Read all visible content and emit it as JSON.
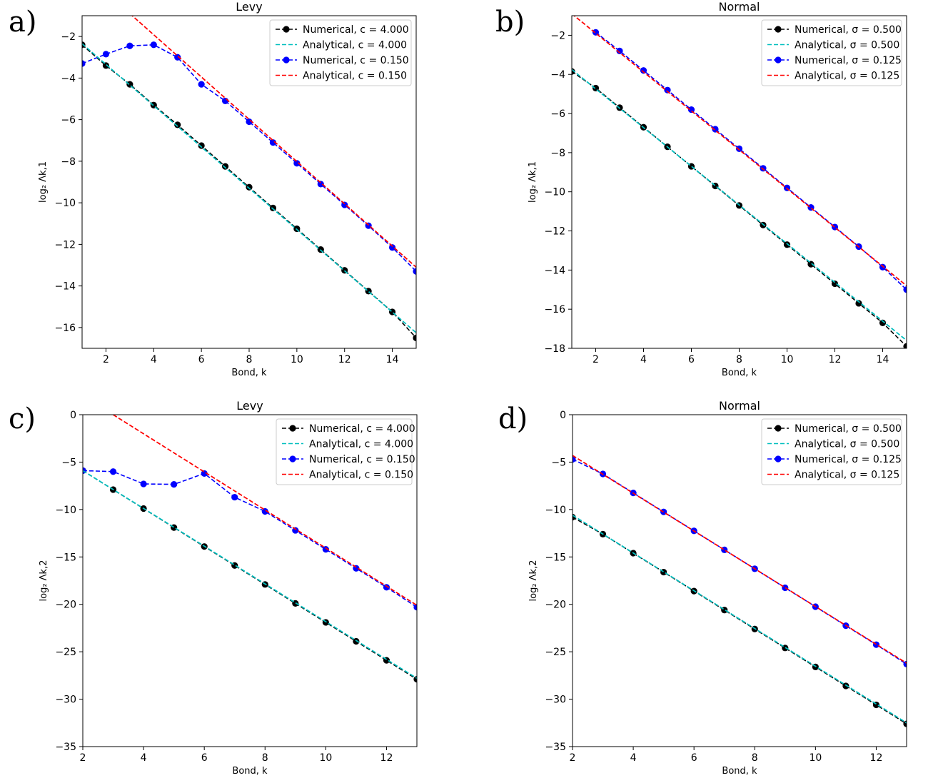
{
  "figure": {
    "panels": [
      "a)",
      "b)",
      "c)",
      "d)"
    ]
  },
  "chart_data": [
    {
      "panel": "a)",
      "type": "line",
      "title": "Levy",
      "xlabel": "Bond, k",
      "ylabel": "log₂ Λk,1",
      "xlim": [
        1,
        15
      ],
      "ylim": [
        -17,
        -1
      ],
      "xticks": [
        2,
        4,
        6,
        8,
        10,
        12,
        14
      ],
      "yticks": [
        -2,
        -4,
        -6,
        -8,
        -10,
        -12,
        -14,
        -16
      ],
      "legend_position": "top-right",
      "series": [
        {
          "name": "Numerical, c = 4.000",
          "style": "numerical",
          "color": "#000000",
          "x": [
            1,
            2,
            3,
            4,
            5,
            6,
            7,
            8,
            9,
            10,
            11,
            12,
            13,
            14,
            15
          ],
          "y": [
            -2.4,
            -3.4,
            -4.3,
            -5.3,
            -6.25,
            -7.25,
            -8.25,
            -9.25,
            -10.25,
            -11.25,
            -12.25,
            -13.25,
            -14.25,
            -15.25,
            -16.5
          ]
        },
        {
          "name": "Analytical, c = 4.000",
          "style": "analytical",
          "color": "#00bfbf",
          "x": [
            1,
            15
          ],
          "y": [
            -2.35,
            -16.25
          ]
        },
        {
          "name": "Numerical, c = 0.150",
          "style": "numerical",
          "color": "#0000ff",
          "x": [
            1,
            2,
            3,
            4,
            5,
            6,
            7,
            8,
            9,
            10,
            11,
            12,
            13,
            14,
            15
          ],
          "y": [
            -3.3,
            -2.85,
            -2.45,
            -2.4,
            -3.0,
            -4.3,
            -5.1,
            -6.1,
            -7.1,
            -8.1,
            -9.1,
            -10.1,
            -11.1,
            -12.15,
            -13.3
          ]
        },
        {
          "name": "Analytical, c = 0.150",
          "style": "analytical",
          "color": "#ff0000",
          "x": [
            3,
            15
          ],
          "y": [
            -0.9,
            -13.1
          ]
        }
      ]
    },
    {
      "panel": "b)",
      "type": "line",
      "title": "Normal",
      "xlabel": "Bond, k",
      "ylabel": "log₂ Λk,1",
      "xlim": [
        1,
        15
      ],
      "ylim": [
        -18,
        -1
      ],
      "xticks": [
        2,
        4,
        6,
        8,
        10,
        12,
        14
      ],
      "yticks": [
        -2,
        -4,
        -6,
        -8,
        -10,
        -12,
        -14,
        -16,
        -18
      ],
      "legend_position": "top-right",
      "series": [
        {
          "name": "Numerical, σ = 0.500",
          "style": "numerical",
          "color": "#000000",
          "x": [
            1,
            2,
            3,
            4,
            5,
            6,
            7,
            8,
            9,
            10,
            11,
            12,
            13,
            14,
            15
          ],
          "y": [
            -3.85,
            -4.7,
            -5.7,
            -6.7,
            -7.7,
            -8.7,
            -9.7,
            -10.7,
            -11.7,
            -12.7,
            -13.7,
            -14.7,
            -15.7,
            -16.7,
            -17.9
          ]
        },
        {
          "name": "Analytical, σ = 0.500",
          "style": "analytical",
          "color": "#00bfbf",
          "x": [
            1,
            15
          ],
          "y": [
            -3.75,
            -17.6
          ]
        },
        {
          "name": "Numerical, σ = 0.125",
          "style": "numerical",
          "color": "#0000ff",
          "x": [
            2,
            3,
            4,
            5,
            6,
            7,
            8,
            9,
            10,
            11,
            12,
            13,
            14,
            15
          ],
          "y": [
            -1.85,
            -2.8,
            -3.8,
            -4.8,
            -5.8,
            -6.8,
            -7.8,
            -8.8,
            -9.8,
            -10.8,
            -11.8,
            -12.8,
            -13.85,
            -15.0
          ]
        },
        {
          "name": "Analytical, σ = 0.125",
          "style": "analytical",
          "color": "#ff0000",
          "x": [
            1,
            15
          ],
          "y": [
            -0.9,
            -14.8
          ]
        }
      ]
    },
    {
      "panel": "c)",
      "type": "line",
      "title": "Levy",
      "xlabel": "Bond, k",
      "ylabel": "log₂ Λk,2",
      "xlim": [
        2,
        13
      ],
      "ylim": [
        -35,
        0
      ],
      "xticks": [
        2,
        4,
        6,
        8,
        10,
        12
      ],
      "yticks": [
        0,
        -5,
        -10,
        -15,
        -20,
        -25,
        -30,
        -35
      ],
      "legend_position": "top-right",
      "series": [
        {
          "name": "Numerical, c = 4.000",
          "style": "numerical",
          "color": "#000000",
          "x": [
            2,
            3,
            4,
            5,
            6,
            7,
            8,
            9,
            10,
            11,
            12,
            13
          ],
          "y": [
            -5.9,
            -7.9,
            -9.9,
            -11.9,
            -13.9,
            -15.9,
            -17.9,
            -19.9,
            -21.9,
            -23.9,
            -25.9,
            -27.9
          ]
        },
        {
          "name": "Analytical, c = 4.000",
          "style": "analytical",
          "color": "#00bfbf",
          "x": [
            2,
            13
          ],
          "y": [
            -5.9,
            -27.8
          ]
        },
        {
          "name": "Numerical, c = 0.150",
          "style": "numerical",
          "color": "#0000ff",
          "x": [
            2,
            3,
            4,
            5,
            6,
            7,
            8,
            9,
            10,
            11,
            12,
            13
          ],
          "y": [
            -5.9,
            -6.0,
            -7.3,
            -7.35,
            -6.2,
            -8.7,
            -10.2,
            -12.2,
            -14.2,
            -16.2,
            -18.2,
            -20.3
          ]
        },
        {
          "name": "Analytical, c = 0.150",
          "style": "analytical",
          "color": "#ff0000",
          "x": [
            3,
            13
          ],
          "y": [
            0,
            -20.1
          ]
        }
      ]
    },
    {
      "panel": "d)",
      "type": "line",
      "title": "Normal",
      "xlabel": "Bond, k",
      "ylabel": "log₂ Λk,2",
      "xlim": [
        2,
        13
      ],
      "ylim": [
        -35,
        0
      ],
      "xticks": [
        2,
        4,
        6,
        8,
        10,
        12
      ],
      "yticks": [
        0,
        -5,
        -10,
        -15,
        -20,
        -25,
        -30,
        -35
      ],
      "legend_position": "top-right",
      "series": [
        {
          "name": "Numerical, σ = 0.500",
          "style": "numerical",
          "color": "#000000",
          "x": [
            2,
            3,
            4,
            5,
            6,
            7,
            8,
            9,
            10,
            11,
            12,
            13
          ],
          "y": [
            -10.8,
            -12.6,
            -14.6,
            -16.6,
            -18.6,
            -20.6,
            -22.6,
            -24.6,
            -26.6,
            -28.6,
            -30.6,
            -32.6
          ]
        },
        {
          "name": "Analytical, σ = 0.500",
          "style": "analytical",
          "color": "#00bfbf",
          "x": [
            2,
            13
          ],
          "y": [
            -10.6,
            -32.5
          ]
        },
        {
          "name": "Numerical, σ = 0.125",
          "style": "numerical",
          "color": "#0000ff",
          "x": [
            2,
            3,
            4,
            5,
            6,
            7,
            8,
            9,
            10,
            11,
            12,
            13
          ],
          "y": [
            -4.7,
            -6.25,
            -8.25,
            -10.25,
            -12.25,
            -14.25,
            -16.25,
            -18.25,
            -20.25,
            -22.25,
            -24.25,
            -26.3
          ]
        },
        {
          "name": "Analytical, σ = 0.125",
          "style": "analytical",
          "color": "#ff0000",
          "x": [
            2,
            13
          ],
          "y": [
            -4.3,
            -26.2
          ]
        }
      ]
    }
  ]
}
